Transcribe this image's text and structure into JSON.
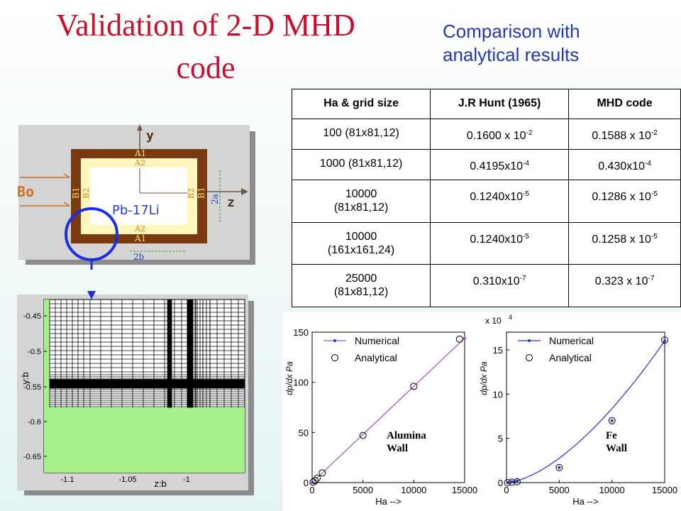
{
  "title": [
    "Validation of 2-D MHD",
    "code"
  ],
  "subtitle": [
    "Comparison with",
    "analytical results"
  ],
  "table": {
    "headers": [
      "Ha & grid size",
      "J.R Hunt (1965)",
      "MHD code"
    ],
    "rows": [
      {
        "ha": [
          "100 (81x81,12)"
        ],
        "hunt": {
          "m": "0.1600 x 10",
          "e": "-2"
        },
        "code": {
          "m": "0.1588 x 10",
          "e": "-2"
        }
      },
      {
        "ha": [
          "1000 (81x81,12)"
        ],
        "hunt": {
          "m": "0.4195x10",
          "e": "-4"
        },
        "code": {
          "m": "0.430x10",
          "e": "-4"
        }
      },
      {
        "ha": [
          "10000",
          "(81x81,12)"
        ],
        "hunt": {
          "m": "0.1240x10",
          "e": "-5"
        },
        "code": {
          "m": "0.1286 x 10",
          "e": "-5"
        }
      },
      {
        "ha": [
          "10000",
          "(161x161,24)"
        ],
        "hunt": {
          "m": "0.1240x10",
          "e": "-5"
        },
        "code": {
          "m": "0.1258 x 10",
          "e": "-5"
        }
      },
      {
        "ha": [
          "25000",
          "(81x81,12)"
        ],
        "hunt": {
          "m": "0.310x10",
          "e": "-7"
        },
        "code": {
          "m": "0.323 x 10",
          "e": "-7"
        }
      }
    ]
  },
  "schematic": {
    "y_label": "y",
    "z_label": "z",
    "bo_label": "Bo",
    "fluid_label": "Pb-17Li",
    "a1": "A1",
    "a2": "A2",
    "b1": "B1",
    "b2": "B2",
    "height_label": "2a",
    "width_label": "2b",
    "colors": {
      "outer_wall": "#7a3a10",
      "inner_wall": "#fff6be",
      "fluid": "#ffffff",
      "label": "#2a3ad0",
      "bo": "#d07020",
      "marker": "#1f2fe0"
    }
  },
  "mesh": {
    "ylabel": "y:b",
    "xlabel": "z:b",
    "yticks": [
      "-0.45",
      "-0.5",
      "-0.55",
      "-0.6",
      "-0.65"
    ],
    "xticks": [
      "-1.1",
      "-1.05",
      "-1"
    ],
    "colors": {
      "wall": "#a6f08a"
    }
  },
  "chart_data": [
    {
      "type": "line",
      "xlabel": "Ha -->",
      "ylabel": "dp/dx Pa",
      "xlim": [
        0,
        15000
      ],
      "ylim": [
        0,
        150
      ],
      "xticks": [
        0,
        5000,
        10000,
        15000
      ],
      "yticks": [
        0,
        50,
        100,
        150
      ],
      "annotation": [
        "Alumina",
        "Wall"
      ],
      "legend": {
        "position": "top-left",
        "entries": [
          "Numerical",
          "Analytical"
        ]
      },
      "series": [
        {
          "name": "Numerical",
          "style": "line",
          "color": "#a050c8",
          "x": [
            0,
            15000
          ],
          "y": [
            0,
            144
          ]
        },
        {
          "name": "Analytical",
          "style": "marker",
          "x": [
            100,
            300,
            500,
            1000,
            5000,
            10000,
            14500
          ],
          "y": [
            0.5,
            2,
            4.5,
            9.7,
            47,
            96,
            143
          ]
        }
      ]
    },
    {
      "type": "line",
      "xlabel": "Ha -->",
      "ylabel": "dp/dx Pa",
      "yscale_label": "x 10",
      "yscale_exp": "4",
      "xlim": [
        0,
        15000
      ],
      "ylim": [
        0,
        17
      ],
      "xticks": [
        0,
        5000,
        10000,
        15000
      ],
      "yticks": [
        0,
        5,
        10,
        15
      ],
      "annotation": [
        "Fe",
        "Wall"
      ],
      "legend": {
        "position": "top-left",
        "entries": [
          "Numerical",
          "Analytical"
        ]
      },
      "series": [
        {
          "name": "Numerical",
          "style": "line",
          "color": "#2030d0",
          "x": [
            100,
            500,
            1000,
            5000,
            10000,
            15000
          ],
          "y": [
            0,
            0.1,
            0.2,
            1.7,
            7.0,
            16.0
          ]
        },
        {
          "name": "Analytical",
          "style": "marker",
          "x": [
            100,
            500,
            1000,
            5000,
            10000,
            15000
          ],
          "y": [
            0,
            0.05,
            0.1,
            1.7,
            7.0,
            16.1
          ]
        }
      ]
    }
  ]
}
